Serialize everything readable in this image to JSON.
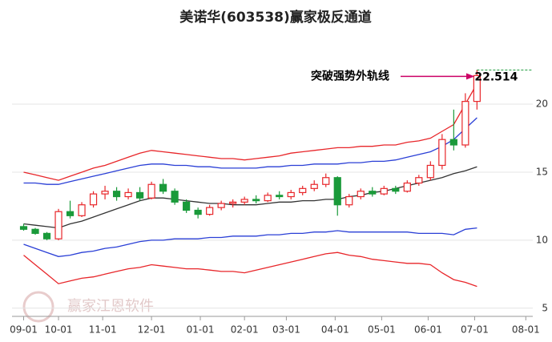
{
  "chart_data": {
    "type": "candlestick",
    "title": "美诺华(603538)赢家极反通道",
    "watermark": "赢家江恩软件",
    "x": [
      0,
      5,
      10,
      15,
      20,
      25,
      30,
      35,
      40,
      45,
      50,
      55,
      60,
      65,
      70,
      75,
      80,
      85,
      90,
      95,
      100,
      105,
      110,
      115,
      120,
      125,
      130,
      135,
      140,
      145,
      150,
      155,
      160,
      165,
      170,
      175,
      180,
      185,
      190,
      195
    ],
    "open": [
      11.0,
      10.8,
      10.5,
      10.1,
      12.1,
      11.8,
      12.6,
      13.4,
      13.6,
      13.2,
      13.5,
      13.1,
      14.1,
      13.6,
      12.8,
      12.2,
      11.9,
      12.4,
      12.7,
      12.8,
      13.0,
      12.9,
      13.3,
      13.2,
      13.5,
      13.8,
      14.1,
      14.6,
      12.6,
      13.2,
      13.6,
      13.4,
      13.8,
      13.6,
      14.2,
      14.6,
      15.5,
      17.4,
      17.0,
      20.2
    ],
    "high": [
      11.2,
      10.9,
      10.6,
      12.3,
      12.9,
      12.8,
      13.6,
      14.0,
      13.9,
      13.8,
      13.9,
      14.3,
      14.5,
      13.8,
      13.0,
      12.4,
      12.6,
      12.9,
      13.0,
      13.2,
      13.3,
      13.5,
      13.6,
      13.7,
      14.0,
      14.4,
      14.9,
      14.7,
      13.4,
      13.8,
      13.9,
      14.0,
      14.0,
      14.4,
      14.8,
      15.8,
      17.8,
      19.6,
      20.8,
      22.514
    ],
    "low": [
      10.7,
      10.4,
      10.0,
      10.0,
      11.6,
      11.7,
      12.4,
      13.0,
      12.9,
      13.0,
      12.9,
      13.0,
      13.4,
      12.6,
      12.0,
      11.6,
      11.8,
      12.2,
      12.4,
      12.6,
      12.7,
      12.8,
      13.0,
      13.0,
      13.3,
      13.6,
      13.9,
      11.8,
      12.4,
      13.0,
      13.2,
      13.3,
      13.4,
      13.5,
      14.0,
      14.4,
      15.2,
      16.6,
      16.8,
      19.6
    ],
    "close": [
      10.8,
      10.5,
      10.1,
      12.1,
      11.8,
      12.6,
      13.4,
      13.6,
      13.2,
      13.5,
      13.1,
      14.1,
      13.6,
      12.8,
      12.2,
      11.9,
      12.4,
      12.7,
      12.8,
      13.0,
      12.9,
      13.3,
      13.2,
      13.5,
      13.8,
      14.1,
      14.6,
      12.6,
      13.2,
      13.6,
      13.4,
      13.8,
      13.6,
      14.2,
      14.6,
      15.5,
      17.4,
      17.0,
      20.2,
      22.1
    ],
    "up_color": "#e8262a",
    "down_color": "#1a9a3a",
    "series": [
      {
        "color": "#e8262a",
        "values": [
          15.0,
          14.8,
          14.6,
          14.4,
          14.7,
          15.0,
          15.3,
          15.5,
          15.8,
          16.1,
          16.4,
          16.6,
          16.5,
          16.4,
          16.3,
          16.2,
          16.1,
          16.0,
          16.0,
          15.9,
          16.0,
          16.1,
          16.2,
          16.4,
          16.5,
          16.6,
          16.7,
          16.8,
          16.8,
          16.9,
          16.9,
          17.0,
          17.0,
          17.2,
          17.3,
          17.5,
          18.0,
          18.5,
          20.0,
          21.5
        ]
      },
      {
        "color": "#2a3fd6",
        "values": [
          14.2,
          14.2,
          14.1,
          14.1,
          14.3,
          14.5,
          14.7,
          14.9,
          15.1,
          15.3,
          15.5,
          15.6,
          15.6,
          15.5,
          15.5,
          15.4,
          15.4,
          15.3,
          15.3,
          15.3,
          15.3,
          15.4,
          15.4,
          15.5,
          15.5,
          15.6,
          15.6,
          15.6,
          15.7,
          15.7,
          15.8,
          15.8,
          15.9,
          16.1,
          16.3,
          16.5,
          16.9,
          17.4,
          18.2,
          19.0
        ]
      },
      {
        "color": "#333333",
        "values": [
          11.2,
          11.1,
          11.0,
          10.9,
          11.2,
          11.4,
          11.7,
          12.0,
          12.3,
          12.6,
          12.9,
          13.1,
          13.1,
          13.0,
          12.9,
          12.8,
          12.7,
          12.7,
          12.6,
          12.6,
          12.6,
          12.7,
          12.8,
          12.8,
          12.9,
          12.9,
          13.0,
          13.0,
          13.2,
          13.3,
          13.5,
          13.6,
          13.8,
          14.0,
          14.2,
          14.4,
          14.6,
          14.9,
          15.1,
          15.4
        ]
      },
      {
        "color": "#2a3fd6",
        "values": [
          9.7,
          9.4,
          9.1,
          8.8,
          8.9,
          9.1,
          9.2,
          9.4,
          9.5,
          9.7,
          9.9,
          10.0,
          10.0,
          10.1,
          10.1,
          10.1,
          10.2,
          10.2,
          10.3,
          10.3,
          10.3,
          10.4,
          10.4,
          10.5,
          10.5,
          10.6,
          10.6,
          10.7,
          10.6,
          10.6,
          10.6,
          10.6,
          10.6,
          10.6,
          10.5,
          10.5,
          10.5,
          10.4,
          10.8,
          10.9
        ]
      },
      {
        "color": "#e8262a",
        "values": [
          8.9,
          8.2,
          7.5,
          6.8,
          7.0,
          7.2,
          7.3,
          7.5,
          7.7,
          7.9,
          8.0,
          8.2,
          8.1,
          8.0,
          7.9,
          7.9,
          7.8,
          7.7,
          7.7,
          7.6,
          7.8,
          8.0,
          8.2,
          8.4,
          8.6,
          8.8,
          9.0,
          9.1,
          8.9,
          8.8,
          8.6,
          8.5,
          8.4,
          8.3,
          8.3,
          8.2,
          7.6,
          7.1,
          6.9,
          6.6
        ]
      }
    ],
    "annotation": {
      "text": "突破强势外轨线",
      "value": 22.514,
      "color": "#cc0066",
      "level_color": "#1a9a3a"
    },
    "xlim": [
      -5,
      219
    ],
    "xticks": [
      {
        "value": 0,
        "label": "09-01"
      },
      {
        "value": 15,
        "label": "10-01"
      },
      {
        "value": 34,
        "label": "11-01"
      },
      {
        "value": 55,
        "label": "12-01"
      },
      {
        "value": 76,
        "label": "01-01"
      },
      {
        "value": 95,
        "label": "02-01"
      },
      {
        "value": 113,
        "label": "03-01"
      },
      {
        "value": 134,
        "label": "04-01"
      },
      {
        "value": 154,
        "label": "05-01"
      },
      {
        "value": 174,
        "label": "06-01"
      },
      {
        "value": 194,
        "label": "07-01"
      },
      {
        "value": 216,
        "label": "08-01"
      }
    ],
    "ylim": [
      4.4,
      25.3
    ],
    "yticks": [
      5,
      10,
      15,
      20
    ],
    "grid": true
  }
}
